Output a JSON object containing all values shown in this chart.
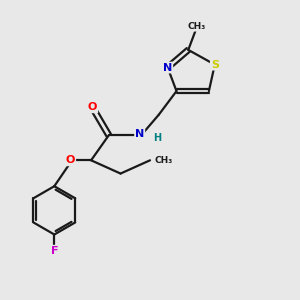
{
  "background_color": "#e8e8e8",
  "bond_color": "#1a1a1a",
  "atom_colors": {
    "O": "#ff0000",
    "N": "#0000cc",
    "S": "#cccc00",
    "F": "#cc00cc",
    "H": "#008080",
    "C": "#1a1a1a"
  },
  "lw": 1.6
}
